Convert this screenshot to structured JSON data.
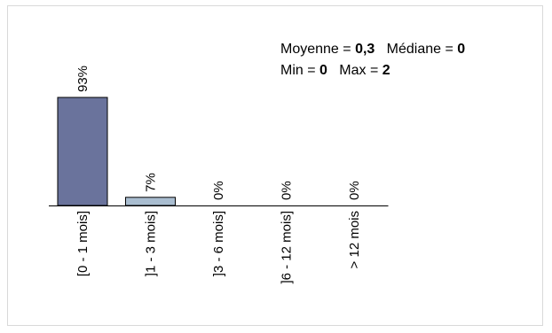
{
  "stats": {
    "mean_label": "Moyenne = ",
    "mean_value": "0,3",
    "median_label": "Médiane = ",
    "median_value": "0",
    "min_label": "Min = ",
    "min_value": "0",
    "max_label": "Max = ",
    "max_value": "2"
  },
  "chart_data": {
    "type": "bar",
    "categories": [
      "[0 - 1 mois]",
      "]1 - 3 mois]",
      "]3 - 6 mois]",
      "]6 - 12 mois]",
      "> 12 mois"
    ],
    "values": [
      93,
      7,
      0,
      0,
      0
    ],
    "data_labels": [
      "93%",
      "7%",
      "0%",
      "0%",
      "0%"
    ],
    "unit": "%",
    "ylim": [
      0,
      100
    ],
    "grid": false,
    "legend": "none",
    "colors": [
      "#6a739c",
      "#a9bdd0",
      "#a9bdd0",
      "#a9bdd0",
      "#a9bdd0"
    ]
  }
}
